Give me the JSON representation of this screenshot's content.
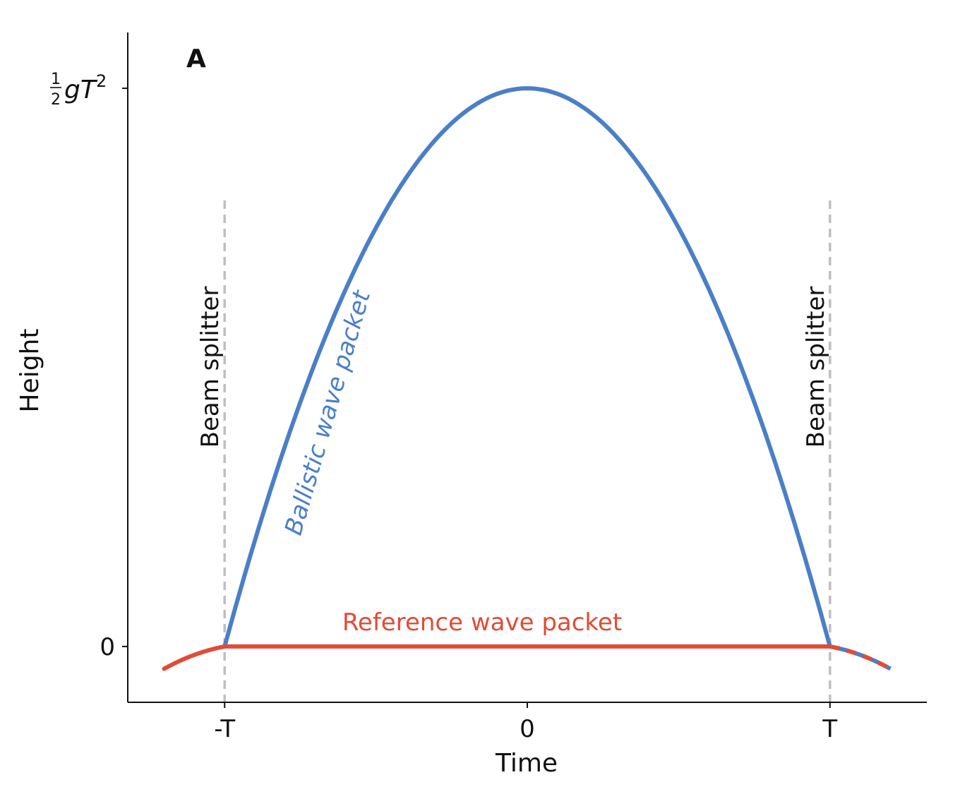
{
  "colors": {
    "ballistic": "#4a7fc8",
    "reference": "#e24b36",
    "beam_splitter": "#bfbfbf",
    "axis": "#111111"
  },
  "chart_data": {
    "type": "line",
    "panel_label": "A",
    "title": "",
    "xlabel": "Time",
    "ylabel": "Height",
    "xlim": [
      -1.32,
      1.32
    ],
    "ylim": [
      -0.1,
      1.1
    ],
    "x_ticks": [
      {
        "value": -1,
        "label": "-T"
      },
      {
        "value": 0,
        "label": "0"
      },
      {
        "value": 1,
        "label": "T"
      }
    ],
    "y_ticks": [
      {
        "value": 0,
        "label": "0"
      },
      {
        "value": 1,
        "label": "½gT²",
        "label_parts": {
          "fraction_num": "1",
          "fraction_den": "2",
          "body": "gT",
          "superscript": "2"
        }
      }
    ],
    "grid": false,
    "series": [
      {
        "name": "Ballistic wave packet",
        "color_key": "ballistic",
        "function": "1 - t^2",
        "x_range": [
          -1,
          1
        ],
        "note": "parabolic arc from (-T, 0) peaking at (0, ½gT²) back to (T, 0)"
      },
      {
        "name": "Reference wave packet",
        "color_key": "reference",
        "segments": [
          {
            "x": [
              -1.2,
              -1.1,
              -1.0
            ],
            "y": [
              -0.04,
              -0.01,
              0
            ]
          },
          {
            "x": [
              -1.0,
              1.0
            ],
            "y": [
              0,
              0
            ]
          },
          {
            "x": [
              1.0,
              1.1,
              1.2
            ],
            "y": [
              0,
              -0.01,
              -0.04
            ],
            "style": "dashed with ballistic color"
          }
        ]
      }
    ],
    "annotations": [
      {
        "text": "Beam splitter",
        "x": -1,
        "style": "vertical dashed line"
      },
      {
        "text": "Beam splitter",
        "x": 1,
        "style": "vertical dashed line"
      }
    ]
  }
}
